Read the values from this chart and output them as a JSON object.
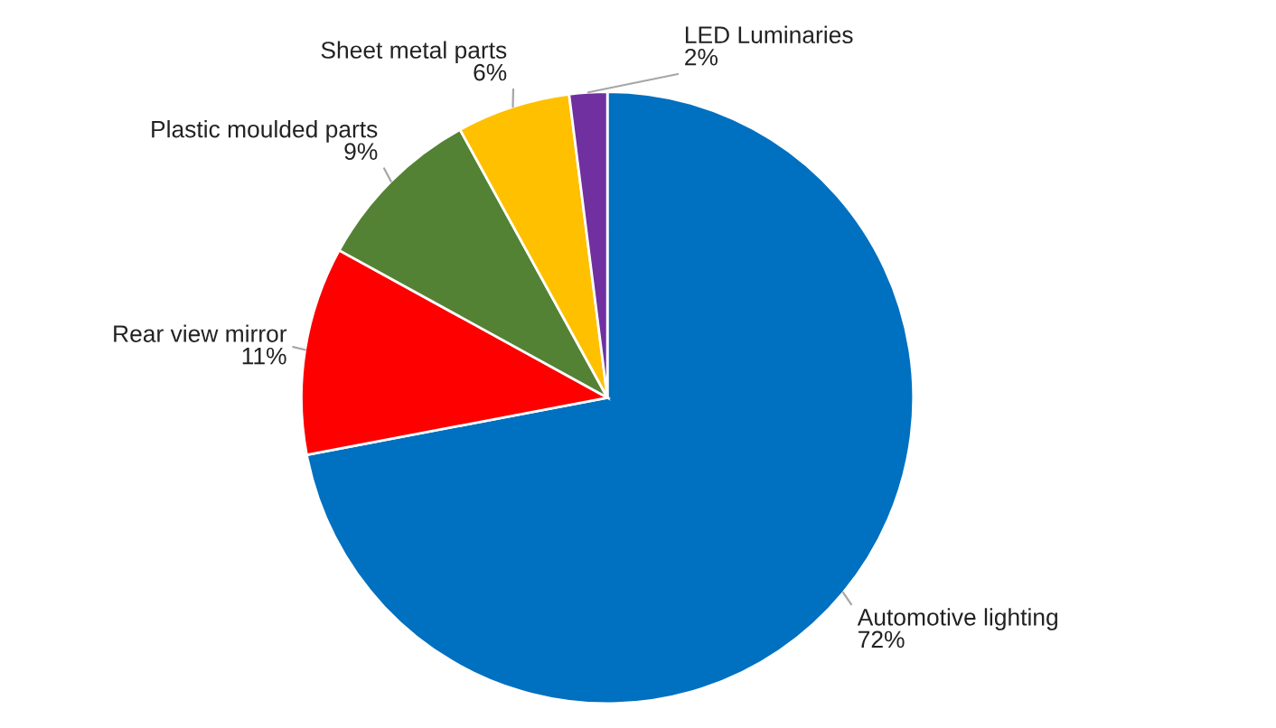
{
  "chart_data": {
    "type": "pie",
    "categories": [
      "Automotive lighting",
      "Rear view mirror",
      "Plastic moulded parts",
      "Sheet metal parts",
      "LED Luminaries"
    ],
    "values": [
      72,
      11,
      9,
      6,
      2
    ],
    "colors": [
      "#0070c0",
      "#ff0000",
      "#548235",
      "#ffc000",
      "#7030a0"
    ],
    "value_labels": [
      "72%",
      "11%",
      "9%",
      "6%",
      "2%"
    ]
  }
}
